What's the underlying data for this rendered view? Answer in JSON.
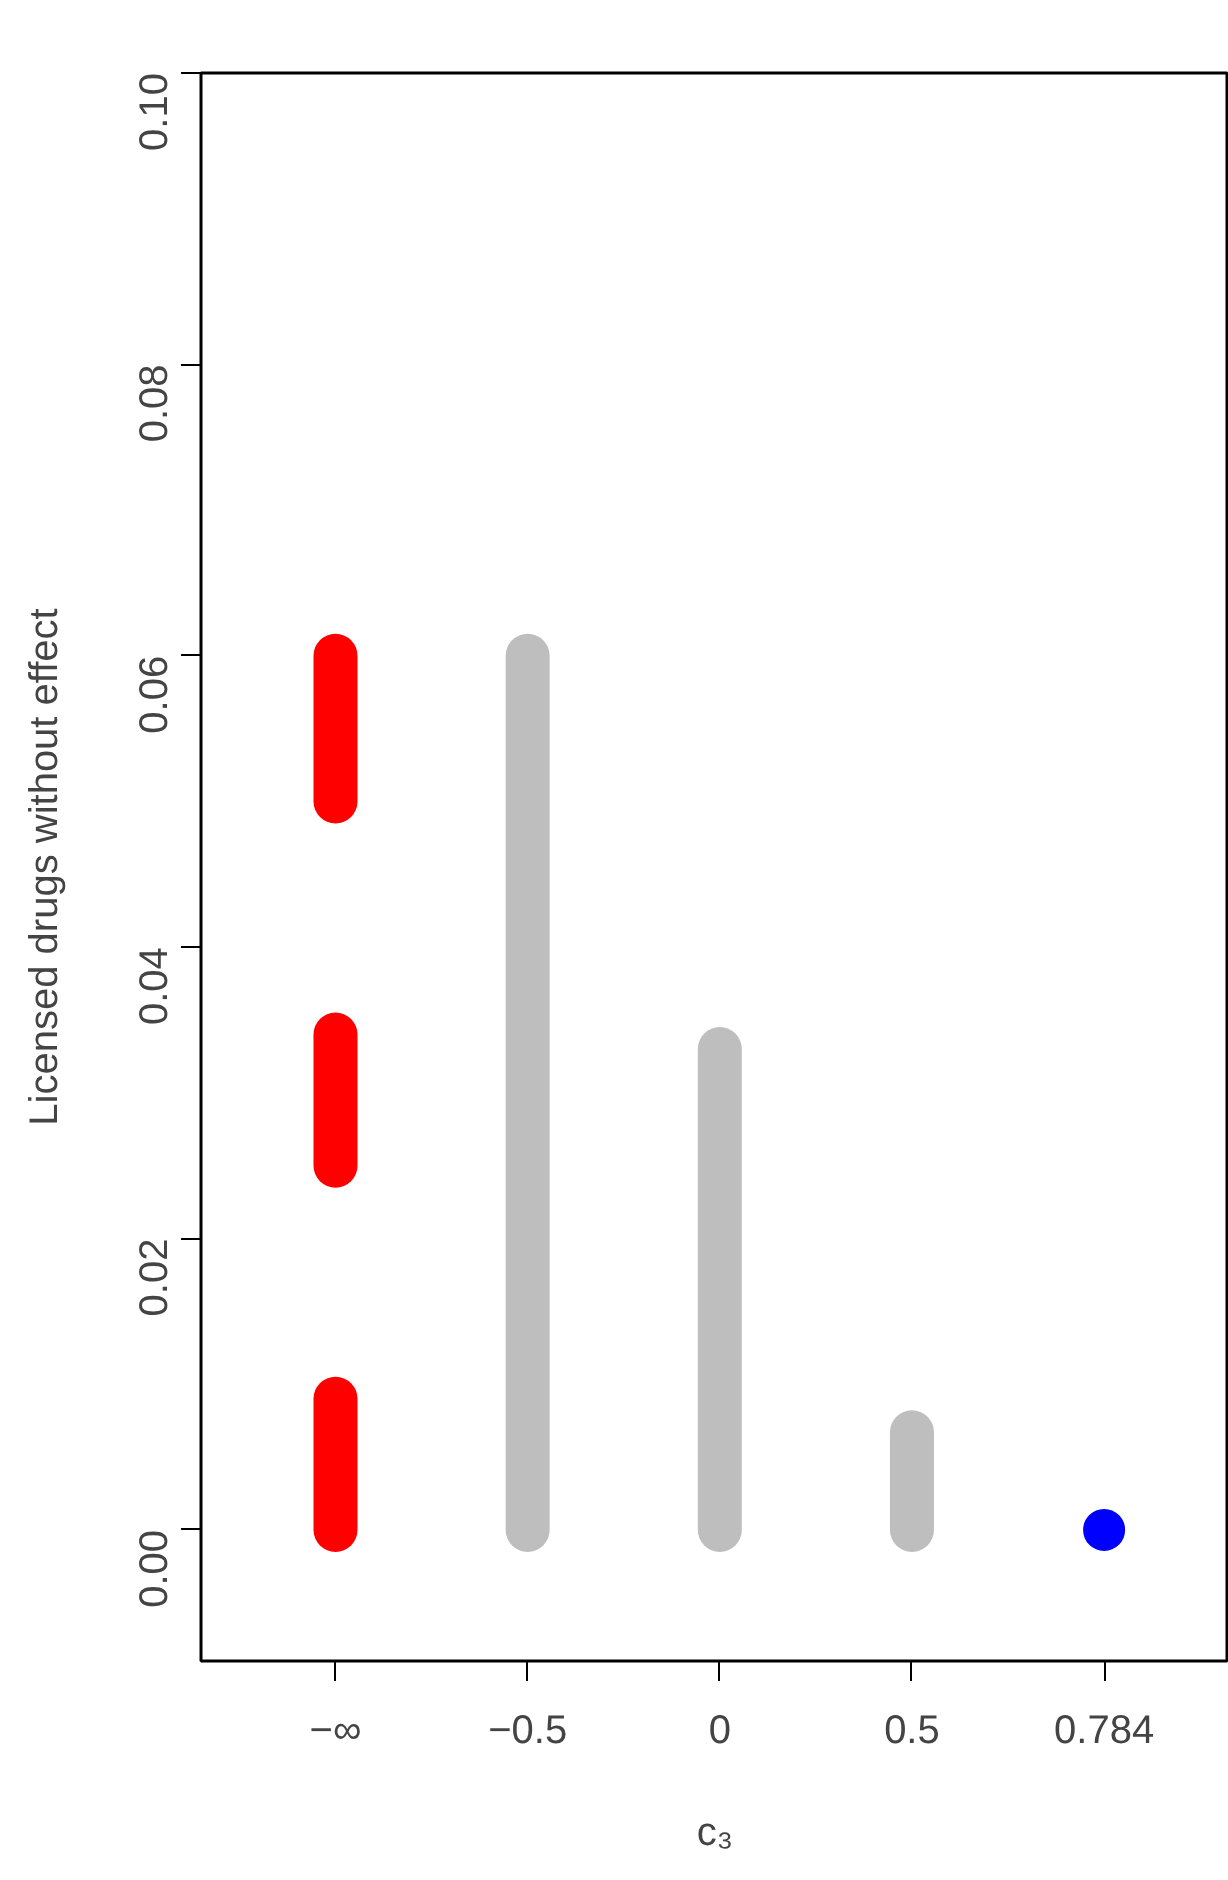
{
  "chart_data": {
    "type": "bar",
    "xlabel": "c₃",
    "ylabel": "Licensed drugs without effect",
    "categories": [
      "−∞",
      "−0.5",
      "0",
      "0.5",
      "0.784"
    ],
    "series": [
      {
        "color": "#ff0000",
        "values": [
          0.009,
          null,
          null,
          null,
          null
        ],
        "base": [
          0,
          null,
          null,
          null,
          null
        ]
      },
      {
        "color": "#ff0000",
        "values": [
          0.009,
          null,
          null,
          null,
          null
        ],
        "base": [
          0.025,
          null,
          null,
          null,
          null
        ]
      },
      {
        "color": "#ff0000",
        "values": [
          0.01,
          null,
          null,
          null,
          null
        ],
        "base": [
          0.05,
          null,
          null,
          null,
          null
        ]
      },
      {
        "color": "#bebebe",
        "values": [
          null,
          0.06,
          0.033,
          0.0067,
          null
        ],
        "base": [
          null,
          0,
          0,
          0,
          null
        ]
      },
      {
        "type": "scatter",
        "color": "#0000ff",
        "marker": "circle",
        "values": [
          null,
          null,
          null,
          null,
          0
        ]
      }
    ],
    "ylim": [
      -0.009,
      0.1
    ],
    "yticks": [
      {
        "value": 0,
        "label": "0.00"
      },
      {
        "value": 0.02,
        "label": "0.02"
      },
      {
        "value": 0.04,
        "label": "0.04"
      },
      {
        "value": 0.06,
        "label": "0.06"
      },
      {
        "value": 0.08,
        "label": "0.08"
      },
      {
        "value": 0.1,
        "label": "0.10"
      }
    ],
    "grid": false
  }
}
